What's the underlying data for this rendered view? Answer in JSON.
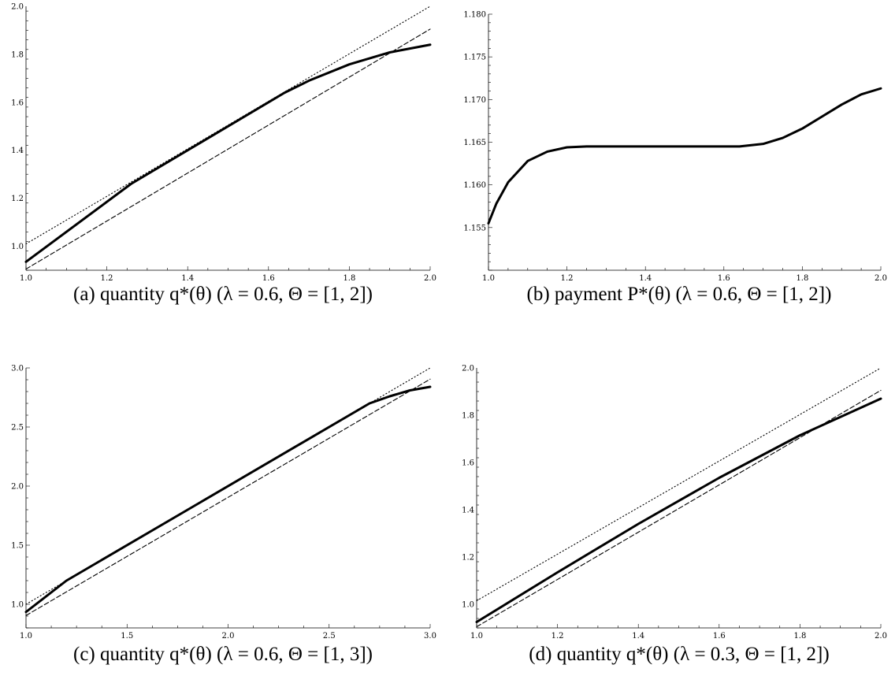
{
  "figure": {
    "panels": [
      {
        "caption": "(a) quantity q*(θ) (λ = 0.6, Θ = [1, 2])"
      },
      {
        "caption": "(b) payment P*(θ) (λ = 0.6, Θ = [1, 2])"
      },
      {
        "caption": "(c) quantity q*(θ) (λ = 0.6, Θ = [1, 3])"
      },
      {
        "caption": "(d) quantity q*(θ) (λ = 0.3, Θ = [1, 2])"
      }
    ]
  },
  "chart_data": [
    {
      "type": "line",
      "title": "",
      "xlabel": "",
      "ylabel": "",
      "xlim": [
        1.0,
        2.0
      ],
      "ylim": [
        0.9,
        2.0
      ],
      "xticks": [
        "1.0",
        "1.2",
        "1.4",
        "1.6",
        "1.8",
        "2.0"
      ],
      "yticks": [
        "1.0",
        "1.2",
        "1.4",
        "1.6",
        "1.8",
        "2.0"
      ],
      "grid": false,
      "series": [
        {
          "style": "solid",
          "x": [
            1.0,
            1.26,
            1.64,
            1.7,
            1.8,
            1.9,
            2.0
          ],
          "values": [
            0.935,
            1.26,
            1.64,
            1.69,
            1.758,
            1.808,
            1.84
          ]
        },
        {
          "style": "dotted",
          "x": [
            1.0,
            2.0
          ],
          "values": [
            1.01,
            2.0
          ]
        },
        {
          "style": "dashed",
          "x": [
            1.0,
            2.0
          ],
          "values": [
            0.905,
            1.905
          ]
        }
      ]
    },
    {
      "type": "line",
      "title": "",
      "xlabel": "",
      "ylabel": "",
      "xlim": [
        1.0,
        2.0
      ],
      "ylim": [
        1.15,
        1.18
      ],
      "xticks": [
        "1.0",
        "1.2",
        "1.4",
        "1.6",
        "1.8",
        "2.0"
      ],
      "yticks": [
        "1.155",
        "1.160",
        "1.165",
        "1.170",
        "1.175",
        "1.180"
      ],
      "grid": false,
      "series": [
        {
          "style": "solid",
          "x": [
            1.0,
            1.02,
            1.05,
            1.1,
            1.15,
            1.2,
            1.25,
            1.64,
            1.7,
            1.75,
            1.8,
            1.85,
            1.9,
            1.95,
            2.0
          ],
          "values": [
            1.1555,
            1.1578,
            1.1603,
            1.1628,
            1.1639,
            1.1644,
            1.1645,
            1.1645,
            1.1648,
            1.1655,
            1.1666,
            1.168,
            1.1694,
            1.1706,
            1.1713
          ]
        }
      ]
    },
    {
      "type": "line",
      "title": "",
      "xlabel": "",
      "ylabel": "",
      "xlim": [
        1.0,
        3.0
      ],
      "ylim": [
        0.8,
        3.0
      ],
      "xticks": [
        "1.0",
        "1.5",
        "2.0",
        "2.5",
        "3.0"
      ],
      "yticks": [
        "1.0",
        "1.5",
        "2.0",
        "2.5",
        "3.0"
      ],
      "grid": false,
      "series": [
        {
          "style": "solid",
          "x": [
            1.0,
            1.2,
            2.7,
            2.8,
            2.9,
            3.0
          ],
          "values": [
            0.935,
            1.2,
            2.7,
            2.76,
            2.81,
            2.84
          ]
        },
        {
          "style": "dotted",
          "x": [
            1.0,
            3.0
          ],
          "values": [
            1.0,
            3.0
          ]
        },
        {
          "style": "dashed",
          "x": [
            1.0,
            3.0
          ],
          "values": [
            0.905,
            2.905
          ]
        }
      ]
    },
    {
      "type": "line",
      "title": "",
      "xlabel": "",
      "ylabel": "",
      "xlim": [
        1.0,
        2.0
      ],
      "ylim": [
        0.9,
        2.0
      ],
      "xticks": [
        "1.0",
        "1.2",
        "1.4",
        "1.6",
        "1.8",
        "2.0"
      ],
      "yticks": [
        "1.0",
        "1.2",
        "1.4",
        "1.6",
        "1.8",
        "2.0"
      ],
      "grid": false,
      "series": [
        {
          "style": "solid",
          "x": [
            1.0,
            1.2,
            1.4,
            1.6,
            1.8,
            2.0
          ],
          "values": [
            0.925,
            1.135,
            1.34,
            1.535,
            1.715,
            1.87
          ]
        },
        {
          "style": "dotted",
          "x": [
            1.0,
            2.0
          ],
          "values": [
            1.015,
            2.0
          ]
        },
        {
          "style": "dashed",
          "x": [
            1.0,
            2.0
          ],
          "values": [
            0.905,
            1.905
          ]
        }
      ]
    }
  ]
}
